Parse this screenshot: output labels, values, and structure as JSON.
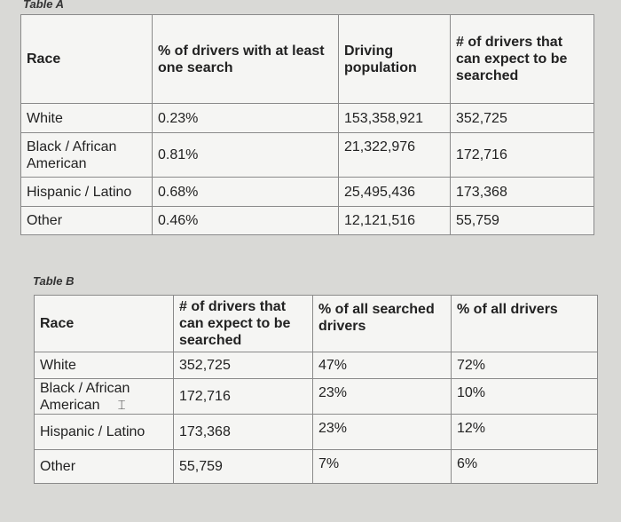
{
  "table_a": {
    "caption": "Table A",
    "headers": [
      "Race",
      "% of drivers with at least one search",
      "Driving population",
      "# of drivers that can expect to be searched"
    ],
    "rows": [
      [
        "White",
        "0.23%",
        "153,358,921",
        "352,725"
      ],
      [
        "Black / African American",
        "0.81%",
        "21,322,976",
        "172,716"
      ],
      [
        "Hispanic / Latino",
        "0.68%",
        "25,495,436",
        "173,368"
      ],
      [
        "Other",
        "0.46%",
        "12,121,516",
        "55,759"
      ]
    ]
  },
  "table_b": {
    "caption": "Table B",
    "headers": [
      "Race",
      "# of drivers that can expect to be searched",
      "% of all searched drivers",
      "% of all drivers"
    ],
    "rows": [
      [
        "White",
        "352,725",
        "47%",
        "72%"
      ],
      [
        "Black / African American",
        "172,716",
        "23%",
        "10%"
      ],
      [
        "Hispanic / Latino",
        "173,368",
        "23%",
        "12%"
      ],
      [
        "Other",
        "55,759",
        "7%",
        "6%"
      ]
    ]
  },
  "cursor_icon": "text-cursor-icon"
}
